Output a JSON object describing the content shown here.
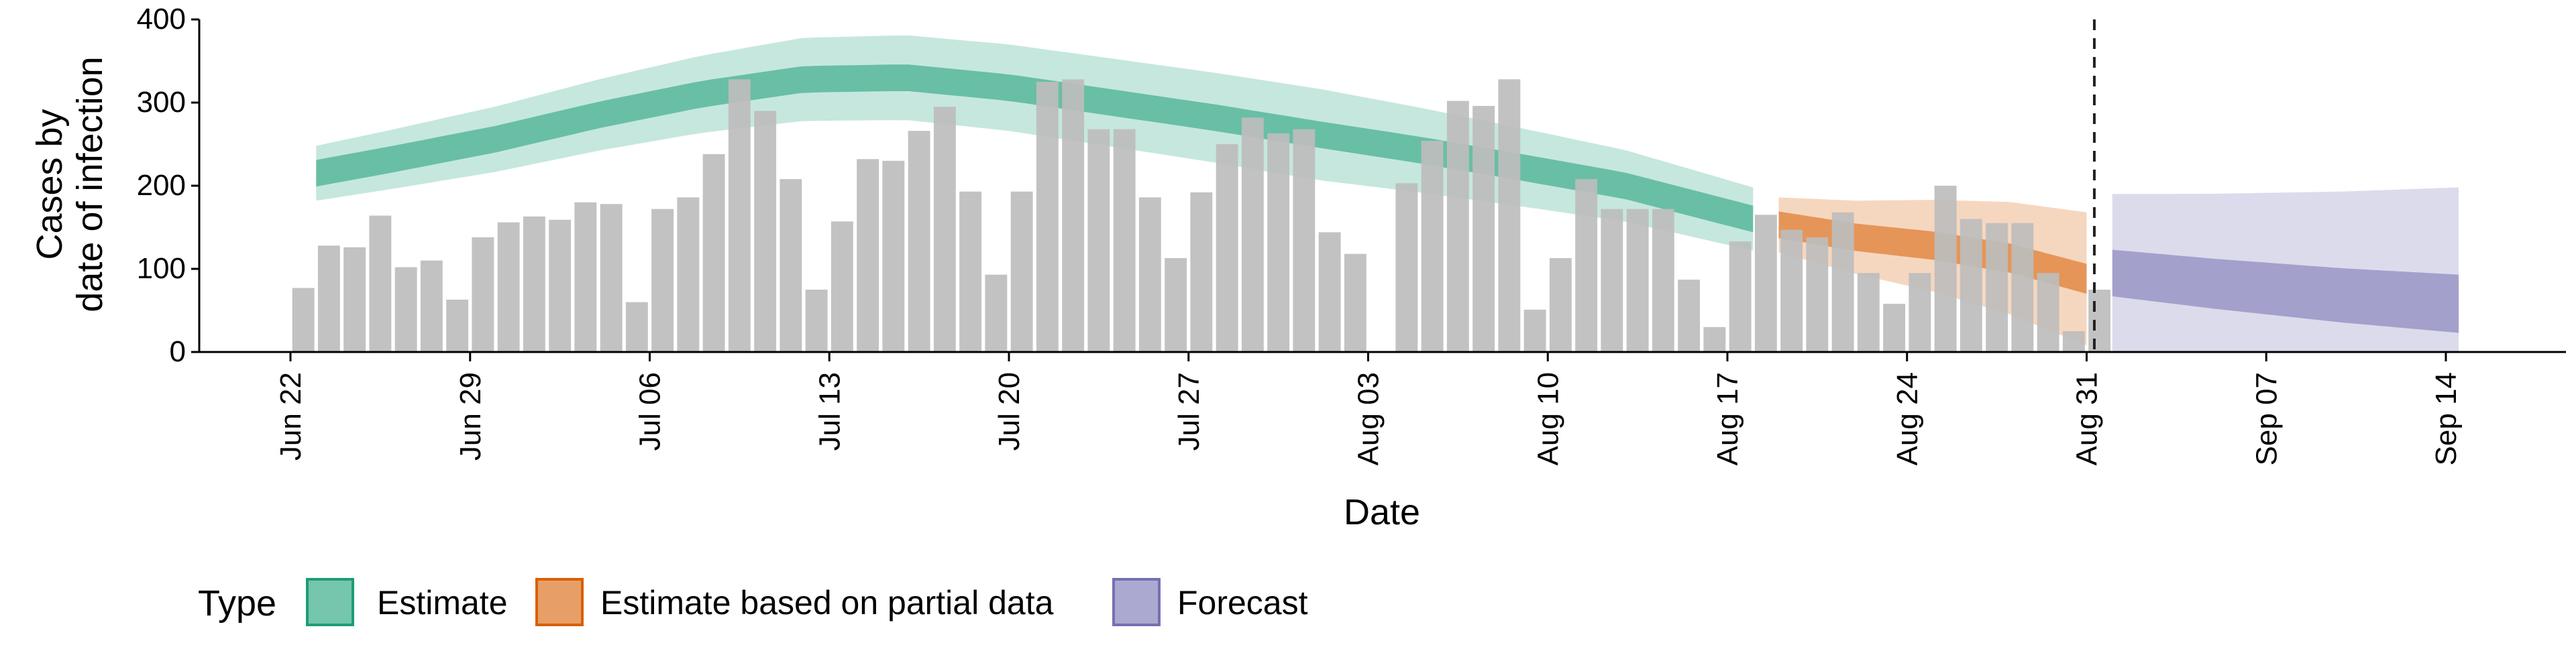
{
  "chart_data": {
    "type": "bar",
    "xlabel": "Date",
    "ylabel_lines": [
      "Cases by",
      "date of infection"
    ],
    "ylim": [
      0,
      400
    ],
    "yticks": [
      0,
      100,
      200,
      300,
      400
    ],
    "xticks": [
      {
        "day": 0,
        "label": "Jun 22"
      },
      {
        "day": 7,
        "label": "Jun 29"
      },
      {
        "day": 14,
        "label": "Jul 06"
      },
      {
        "day": 21,
        "label": "Jul 13"
      },
      {
        "day": 28,
        "label": "Jul 20"
      },
      {
        "day": 35,
        "label": "Jul 27"
      },
      {
        "day": 42,
        "label": "Aug 03"
      },
      {
        "day": 49,
        "label": "Aug 10"
      },
      {
        "day": 56,
        "label": "Aug 17"
      },
      {
        "day": 63,
        "label": "Aug 24"
      },
      {
        "day": 70,
        "label": "Aug 31"
      },
      {
        "day": 77,
        "label": "Sep 07"
      },
      {
        "day": 84,
        "label": "Sep 14"
      }
    ],
    "x_start": "2020-06-22",
    "forecast_start_day": 70.3,
    "bars": {
      "first_day": 0.5,
      "values": [
        77,
        128,
        126,
        164,
        102,
        110,
        63,
        138,
        156,
        163,
        159,
        180,
        178,
        60,
        172,
        186,
        238,
        328,
        290,
        208,
        75,
        157,
        232,
        230,
        266,
        295,
        193,
        93,
        193,
        325,
        328,
        268,
        268,
        186,
        113,
        192,
        250,
        282,
        263,
        268,
        144,
        118,
        null,
        203,
        254,
        302,
        296,
        328,
        51,
        113,
        208,
        172,
        172,
        172,
        87,
        30,
        133,
        165,
        147,
        138,
        168,
        95,
        58,
        95,
        200,
        160,
        155,
        155,
        95,
        25,
        75
      ]
    },
    "estimate": {
      "day_start": 1,
      "day_end": 57,
      "center": [
        [
          1,
          215
        ],
        [
          4,
          232
        ],
        [
          8,
          256
        ],
        [
          12,
          285
        ],
        [
          16,
          310
        ],
        [
          20,
          328
        ],
        [
          24,
          330
        ],
        [
          28,
          318
        ],
        [
          32,
          300
        ],
        [
          36,
          282
        ],
        [
          40,
          262
        ],
        [
          44,
          243
        ],
        [
          48,
          222
        ],
        [
          52,
          200
        ],
        [
          56,
          168
        ],
        [
          57,
          160
        ]
      ],
      "inner_halfwidth": [
        [
          1,
          16
        ],
        [
          57,
          16
        ]
      ],
      "outer_halfwidth": [
        [
          1,
          33
        ],
        [
          20,
          50
        ],
        [
          40,
          55
        ],
        [
          57,
          38
        ]
      ]
    },
    "partial": {
      "day_start": 58,
      "day_end": 70,
      "center": [
        [
          58,
          153
        ],
        [
          61,
          138
        ],
        [
          64,
          128
        ],
        [
          67,
          113
        ],
        [
          70,
          88
        ]
      ],
      "inner_halfwidth": [
        [
          58,
          16
        ],
        [
          70,
          18
        ]
      ],
      "outer_halfwidth": [
        [
          58,
          33
        ],
        [
          64,
          55
        ],
        [
          70,
          80
        ]
      ]
    },
    "forecast": {
      "day_start": 71,
      "day_end": 84.5,
      "center": [
        [
          71,
          95
        ],
        [
          75,
          82
        ],
        [
          80,
          68
        ],
        [
          84.5,
          58
        ]
      ],
      "inner_halfwidth": [
        [
          71,
          28
        ],
        [
          84.5,
          35
        ]
      ],
      "outer_halfwidth": [
        [
          71,
          95
        ],
        [
          84.5,
          140
        ]
      ]
    },
    "legend": {
      "title": "Type",
      "entries": [
        {
          "label": "Estimate",
          "fill": "#1b9e77",
          "stroke": "#1b9e77"
        },
        {
          "label": "Estimate based on partial data",
          "fill": "#d95f02",
          "stroke": "#d95f02"
        },
        {
          "label": "Forecast",
          "fill": "#7570b3",
          "stroke": "#7570b3"
        }
      ]
    },
    "colors": {
      "bar": "#bdbdbd",
      "estimate": "#1b9e77",
      "partial": "#d95f02",
      "forecast": "#7570b3",
      "axis": "#000000"
    },
    "grid": false
  }
}
